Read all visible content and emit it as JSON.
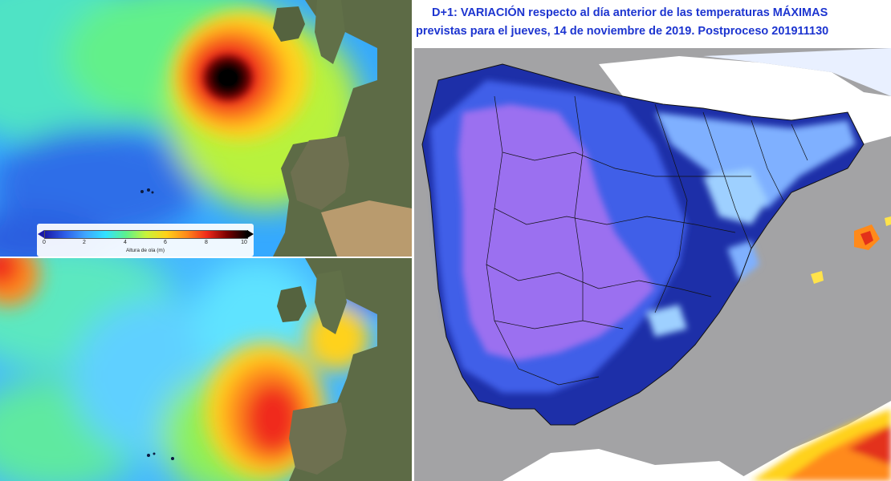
{
  "wave_map": {
    "legend": {
      "title": "Altura de ola (m)",
      "ticks": [
        "0",
        "2",
        "4",
        "6",
        "8",
        "10"
      ],
      "colors": [
        "#1a1aa8",
        "#3fa6ff",
        "#31e2ff",
        "#5cf28d",
        "#ffd21a",
        "#f02a1a",
        "#000000"
      ]
    }
  },
  "temp_map": {
    "title_line1": "D+1:  VARIACIÓN respecto al día anterior de las temperaturas MÁXIMAS",
    "title_line2": "previstas para el jueves, 14 de noviembre de 2019. Postproceso 201911130",
    "colors": {
      "sea": "#a3a3a5",
      "strong_cold": "#1d2fa8",
      "cold": "#3f5fe8",
      "mild_cold": "#7fb0ff",
      "very_strong_cold": "#9b6ff0",
      "warm": "#ff8a1a",
      "hot": "#e3321a"
    }
  }
}
